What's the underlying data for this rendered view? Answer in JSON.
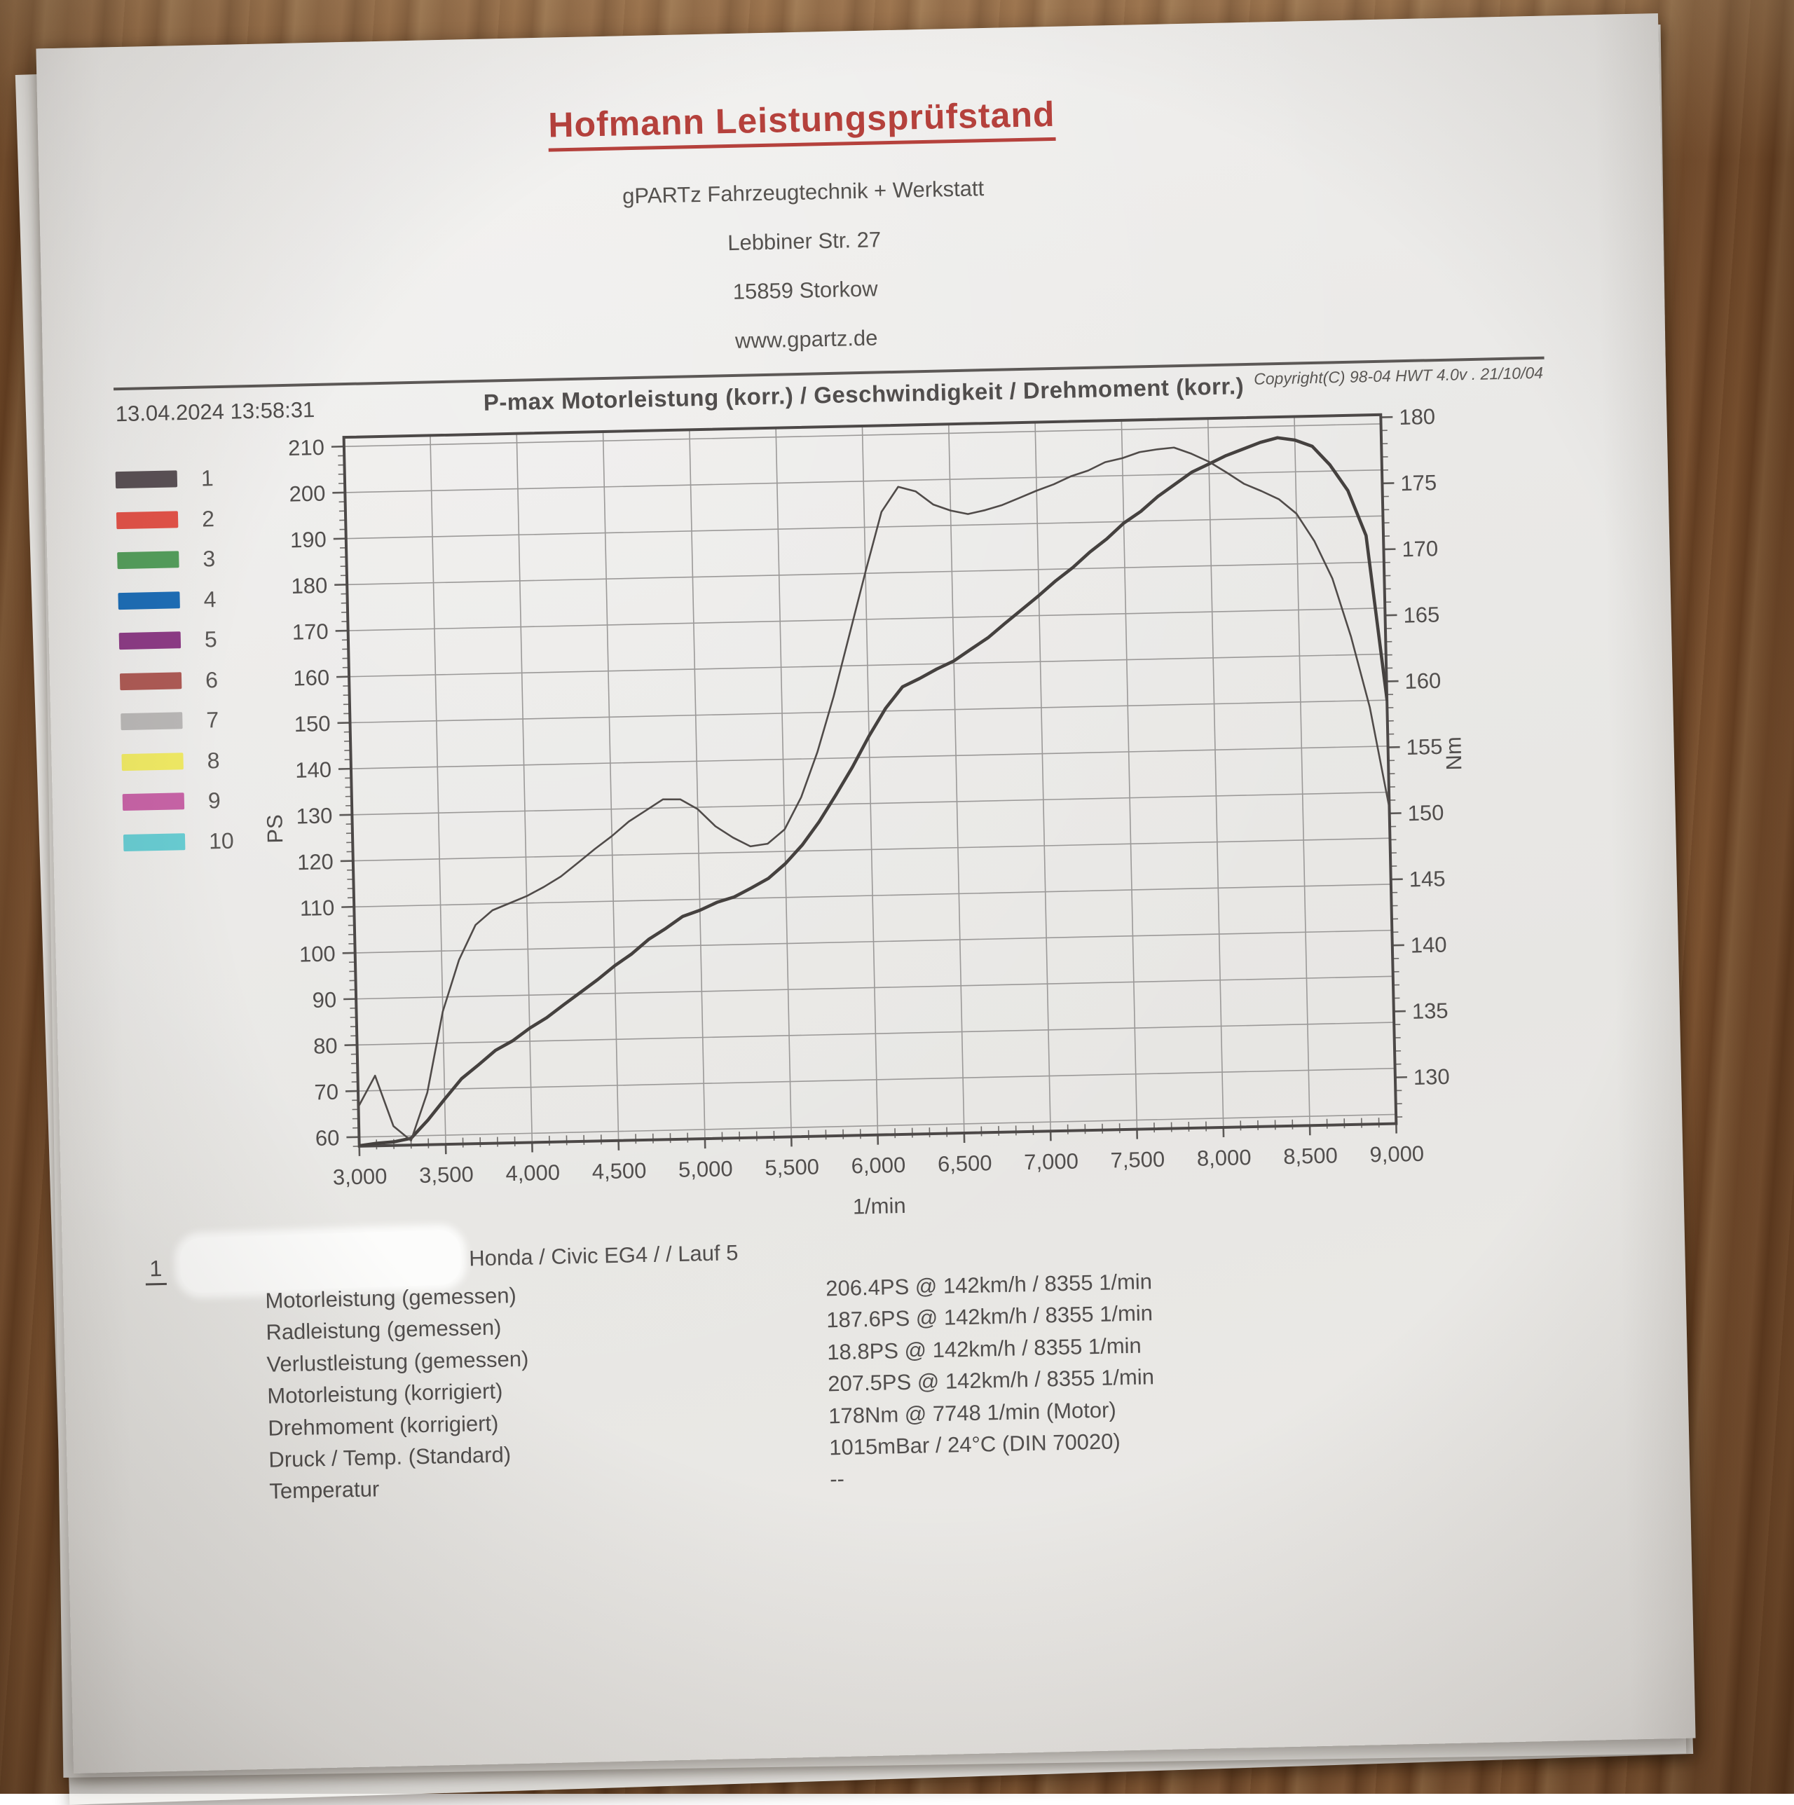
{
  "header": {
    "title": "Hofmann Leistungsprüfstand",
    "org": "gPARTz Fahrzeugtechnik + Werkstatt",
    "street": "Lebbiner Str. 27",
    "city": "15859 Storkow",
    "website": "www.gpartz.de"
  },
  "meta": {
    "timestamp": "13.04.2024 13:58:31",
    "copyright": "Copyright(C) 98-04 HWT 4.0v . 21/10/04"
  },
  "chart_data": {
    "type": "line",
    "title": "P-max Motorleistung (korr.) / Geschwindigkeit / Drehmoment (korr.)",
    "grid": true,
    "legend_position": "left",
    "legend": [
      {
        "label": "1",
        "color": "#5a5156"
      },
      {
        "label": "2",
        "color": "#e35349"
      },
      {
        "label": "3",
        "color": "#549e5c"
      },
      {
        "label": "4",
        "color": "#1d6db6"
      },
      {
        "label": "5",
        "color": "#8c3b85"
      },
      {
        "label": "6",
        "color": "#ad5a55"
      },
      {
        "label": "7",
        "color": "#b9b7b6"
      },
      {
        "label": "8",
        "color": "#efe964"
      },
      {
        "label": "9",
        "color": "#c763a6"
      },
      {
        "label": "10",
        "color": "#68ccd2"
      }
    ],
    "x_axis": {
      "label": "1/min",
      "min": 3000,
      "max": 9000,
      "major_step": 500,
      "minor_step": 100,
      "tick_labels": [
        "3,000",
        "3,500",
        "4,000",
        "4,500",
        "5,000",
        "5,500",
        "6,000",
        "6,500",
        "7,000",
        "7,500",
        "8,000",
        "8,500",
        "9,000"
      ]
    },
    "left_axis": {
      "label": "PS",
      "plot_min": 58,
      "plot_max": 212,
      "tick_min": 60,
      "tick_max": 210,
      "major_step": 10,
      "minor_step": 2
    },
    "right_axis": {
      "label": "Nm",
      "plot_min": 126.5,
      "plot_max": 180.2,
      "tick_min": 130,
      "tick_max": 180,
      "major_step": 5,
      "minor_step": 1
    },
    "x_rpm": [
      3000,
      3100,
      3200,
      3300,
      3400,
      3500,
      3600,
      3700,
      3800,
      3900,
      4000,
      4100,
      4200,
      4300,
      4400,
      4500,
      4600,
      4700,
      4800,
      4900,
      5000,
      5100,
      5200,
      5300,
      5400,
      5500,
      5600,
      5700,
      5800,
      5900,
      6000,
      6100,
      6200,
      6300,
      6400,
      6500,
      6600,
      6700,
      6800,
      6900,
      7000,
      7100,
      7200,
      7300,
      7400,
      7500,
      7600,
      7700,
      7800,
      7900,
      8000,
      8100,
      8200,
      8300,
      8400,
      8500,
      8600,
      8700,
      8800,
      8900,
      9000
    ],
    "series": [
      {
        "name": "Motorleistung (korr.)",
        "axis": "left",
        "unit": "PS",
        "color": "#45413f",
        "stroke_width": 4.6,
        "values": [
          58.1,
          58.6,
          58.7,
          59.6,
          63.2,
          68.0,
          72.0,
          75.3,
          78.0,
          80.3,
          82.7,
          85.1,
          87.7,
          90.4,
          93.1,
          95.9,
          98.6,
          101.4,
          104.0,
          106.2,
          107.8,
          109.1,
          110.5,
          112.1,
          114.3,
          117.3,
          121.3,
          126.3,
          131.9,
          138.1,
          144.5,
          150.8,
          155.0,
          157.1,
          158.7,
          160.7,
          162.9,
          165.5,
          168.4,
          171.4,
          174.4,
          177.4,
          180.4,
          183.4,
          186.5,
          189.5,
          192.3,
          195.1,
          198.0,
          200.3,
          202.2,
          203.8,
          205.2,
          206.6,
          207.4,
          207.0,
          205.3,
          201.5,
          195.5,
          186.0,
          150.0
        ]
      },
      {
        "name": "Drehmoment (korr.)",
        "axis": "right",
        "unit": "Nm",
        "color": "#504b49",
        "stroke_width": 2.6,
        "values": [
          129.5,
          131.8,
          128.0,
          126.8,
          130.5,
          136.5,
          140.5,
          143.0,
          144.2,
          144.6,
          145.2,
          145.8,
          146.6,
          147.6,
          148.6,
          149.6,
          150.6,
          151.5,
          152.2,
          152.3,
          151.4,
          150.2,
          149.2,
          148.6,
          148.7,
          149.8,
          152.2,
          155.6,
          159.8,
          164.4,
          169.2,
          173.6,
          175.6,
          175.1,
          174.2,
          173.6,
          173.4,
          173.6,
          174.0,
          174.5,
          175.0,
          175.5,
          176.0,
          176.5,
          177.0,
          177.4,
          177.7,
          178.0,
          178.0,
          177.6,
          176.9,
          176.1,
          175.2,
          174.6,
          174.0,
          172.8,
          170.8,
          167.8,
          163.5,
          158.0,
          150.5
        ]
      }
    ]
  },
  "run": {
    "index": "1",
    "vehicle": "Honda / Civic EG4 / / Lauf 5"
  },
  "results": {
    "rows": [
      {
        "label": "Motorleistung (gemessen)",
        "value": "206.4PS @ 142km/h / 8355 1/min"
      },
      {
        "label": "Radleistung (gemessen)",
        "value": "187.6PS @ 142km/h / 8355 1/min"
      },
      {
        "label": "Verlustleistung (gemessen)",
        "value": "18.8PS @ 142km/h / 8355 1/min"
      },
      {
        "label": "Motorleistung (korrigiert)",
        "value": "207.5PS @ 142km/h / 8355 1/min"
      },
      {
        "label": "Drehmoment (korrigiert)",
        "value": "178Nm @ 7748 1/min (Motor)"
      },
      {
        "label": "Druck / Temp. (Standard)",
        "value": "1015mBar / 24°C  (DIN 70020)"
      },
      {
        "label": "Temperatur",
        "value": "--"
      }
    ]
  }
}
